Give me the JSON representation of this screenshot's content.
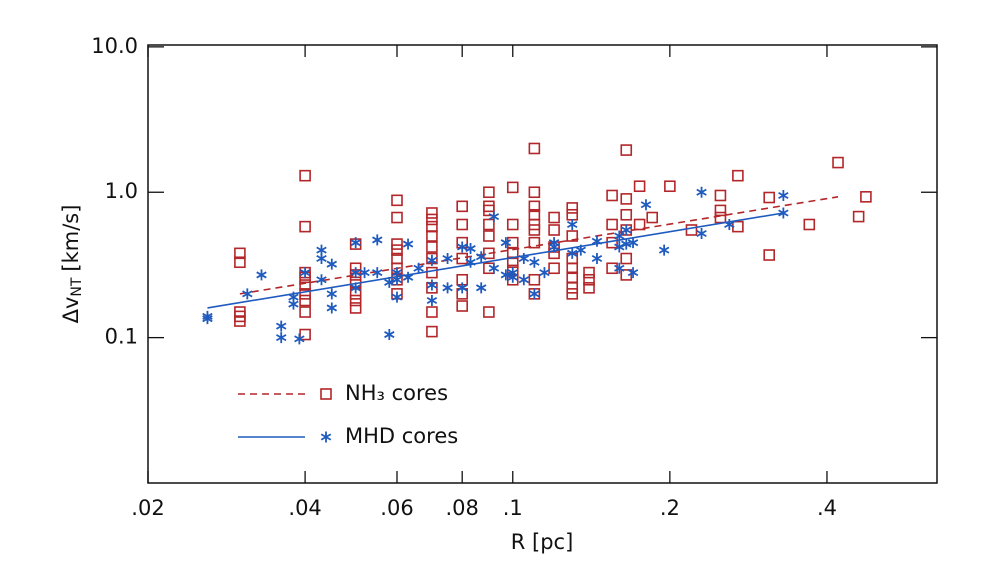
{
  "chart_data": {
    "type": "scatter",
    "x_label": "R [pc]",
    "y_label": {
      "main": "Δv",
      "sub": "NT",
      "unit": "[km/s]"
    },
    "xscale": "log",
    "yscale": "log",
    "xlim": [
      0.02,
      0.65
    ],
    "ylim": [
      0.01,
      10.3
    ],
    "xticks": [
      {
        "value": 0.02,
        "label": ".02"
      },
      {
        "value": 0.04,
        "label": ".04"
      },
      {
        "value": 0.06,
        "label": ".06"
      },
      {
        "value": 0.08,
        "label": ".08"
      },
      {
        "value": 0.1,
        "label": ".1"
      },
      {
        "value": 0.2,
        "label": ".2"
      },
      {
        "value": 0.4,
        "label": ".4"
      }
    ],
    "yticks": [
      0.1,
      {
        "value": 1,
        "label": "1.0"
      },
      {
        "value": 10,
        "label": "10.0"
      }
    ],
    "series": [
      {
        "name": "NH₃ cores",
        "color": "#b3262a",
        "marker": "square",
        "fit_dash": true,
        "fit_x": [
          0.03,
          0.42
        ],
        "fit_y": [
          0.2,
          0.93
        ],
        "x": [
          0.03,
          0.03,
          0.03,
          0.03,
          0.03,
          0.04,
          0.04,
          0.04,
          0.04,
          0.04,
          0.04,
          0.04,
          0.04,
          0.04,
          0.05,
          0.05,
          0.05,
          0.05,
          0.05,
          0.05,
          0.05,
          0.06,
          0.06,
          0.06,
          0.06,
          0.06,
          0.06,
          0.06,
          0.06,
          0.07,
          0.07,
          0.07,
          0.07,
          0.07,
          0.07,
          0.07,
          0.07,
          0.07,
          0.07,
          0.08,
          0.08,
          0.08,
          0.08,
          0.08,
          0.08,
          0.08,
          0.09,
          0.09,
          0.09,
          0.09,
          0.09,
          0.09,
          0.09,
          0.09,
          0.1,
          0.1,
          0.1,
          0.1,
          0.1,
          0.1,
          0.1,
          0.11,
          0.11,
          0.11,
          0.11,
          0.11,
          0.11,
          0.11,
          0.11,
          0.11,
          0.12,
          0.12,
          0.12,
          0.12,
          0.12,
          0.13,
          0.13,
          0.13,
          0.13,
          0.13,
          0.13,
          0.13,
          0.13,
          0.14,
          0.14,
          0.14,
          0.155,
          0.155,
          0.155,
          0.155,
          0.165,
          0.165,
          0.165,
          0.165,
          0.165,
          0.165,
          0.175,
          0.175,
          0.185,
          0.2,
          0.22,
          0.25,
          0.25,
          0.25,
          0.27,
          0.27,
          0.31,
          0.31,
          0.37,
          0.42,
          0.46,
          0.475
        ],
        "values": [
          0.38,
          0.33,
          0.15,
          0.14,
          0.13,
          1.3,
          0.58,
          0.28,
          0.26,
          0.23,
          0.2,
          0.18,
          0.15,
          0.105,
          0.44,
          0.3,
          0.27,
          0.24,
          0.2,
          0.18,
          0.16,
          0.88,
          0.67,
          0.44,
          0.4,
          0.35,
          0.3,
          0.25,
          0.2,
          0.72,
          0.65,
          0.58,
          0.5,
          0.42,
          0.35,
          0.28,
          0.22,
          0.15,
          0.11,
          0.8,
          0.6,
          0.45,
          0.35,
          0.25,
          0.2,
          0.165,
          1.0,
          0.8,
          0.75,
          0.6,
          0.5,
          0.38,
          0.3,
          0.15,
          1.08,
          0.6,
          0.45,
          0.38,
          0.33,
          0.29,
          0.25,
          2.0,
          1.0,
          0.8,
          0.7,
          0.6,
          0.55,
          0.45,
          0.25,
          0.2,
          0.67,
          0.55,
          0.42,
          0.38,
          0.3,
          0.78,
          0.7,
          0.5,
          0.35,
          0.3,
          0.26,
          0.22,
          0.2,
          0.25,
          0.22,
          0.28,
          0.95,
          0.6,
          0.45,
          0.3,
          1.95,
          0.9,
          0.7,
          0.55,
          0.35,
          0.27,
          1.1,
          0.6,
          0.67,
          1.1,
          0.55,
          0.95,
          0.75,
          0.67,
          1.3,
          0.58,
          0.92,
          0.37,
          0.6,
          1.6,
          0.68,
          0.93
        ]
      },
      {
        "name": "MHD cores",
        "color": "#1f5bbf",
        "marker": "star",
        "fit_dash": false,
        "fit_x": [
          0.026,
          0.33
        ],
        "fit_y": [
          0.16,
          0.72
        ],
        "x": [
          0.026,
          0.026,
          0.031,
          0.033,
          0.036,
          0.036,
          0.038,
          0.038,
          0.039,
          0.04,
          0.043,
          0.043,
          0.043,
          0.045,
          0.045,
          0.045,
          0.05,
          0.05,
          0.05,
          0.052,
          0.055,
          0.055,
          0.058,
          0.058,
          0.06,
          0.06,
          0.06,
          0.063,
          0.063,
          0.066,
          0.07,
          0.07,
          0.07,
          0.075,
          0.075,
          0.08,
          0.08,
          0.083,
          0.083,
          0.087,
          0.087,
          0.092,
          0.092,
          0.097,
          0.097,
          0.1,
          0.1,
          0.105,
          0.105,
          0.11,
          0.11,
          0.115,
          0.12,
          0.12,
          0.13,
          0.13,
          0.135,
          0.145,
          0.145,
          0.16,
          0.16,
          0.16,
          0.165,
          0.165,
          0.17,
          0.17,
          0.18,
          0.195,
          0.23,
          0.23,
          0.26,
          0.33,
          0.33
        ],
        "values": [
          0.14,
          0.135,
          0.2,
          0.27,
          0.12,
          0.1,
          0.19,
          0.17,
          0.098,
          0.28,
          0.4,
          0.35,
          0.25,
          0.32,
          0.2,
          0.16,
          0.45,
          0.22,
          0.28,
          0.28,
          0.47,
          0.28,
          0.105,
          0.24,
          0.19,
          0.28,
          0.25,
          0.44,
          0.26,
          0.3,
          0.23,
          0.18,
          0.34,
          0.22,
          0.35,
          0.42,
          0.22,
          0.41,
          0.33,
          0.22,
          0.36,
          0.68,
          0.3,
          0.45,
          0.27,
          0.28,
          0.26,
          0.35,
          0.25,
          0.33,
          0.2,
          0.28,
          0.42,
          0.45,
          0.6,
          0.38,
          0.4,
          0.46,
          0.35,
          0.5,
          0.42,
          0.3,
          0.55,
          0.44,
          0.28,
          0.45,
          0.82,
          0.4,
          1.0,
          0.52,
          0.6,
          0.95,
          0.72
        ]
      }
    ]
  }
}
